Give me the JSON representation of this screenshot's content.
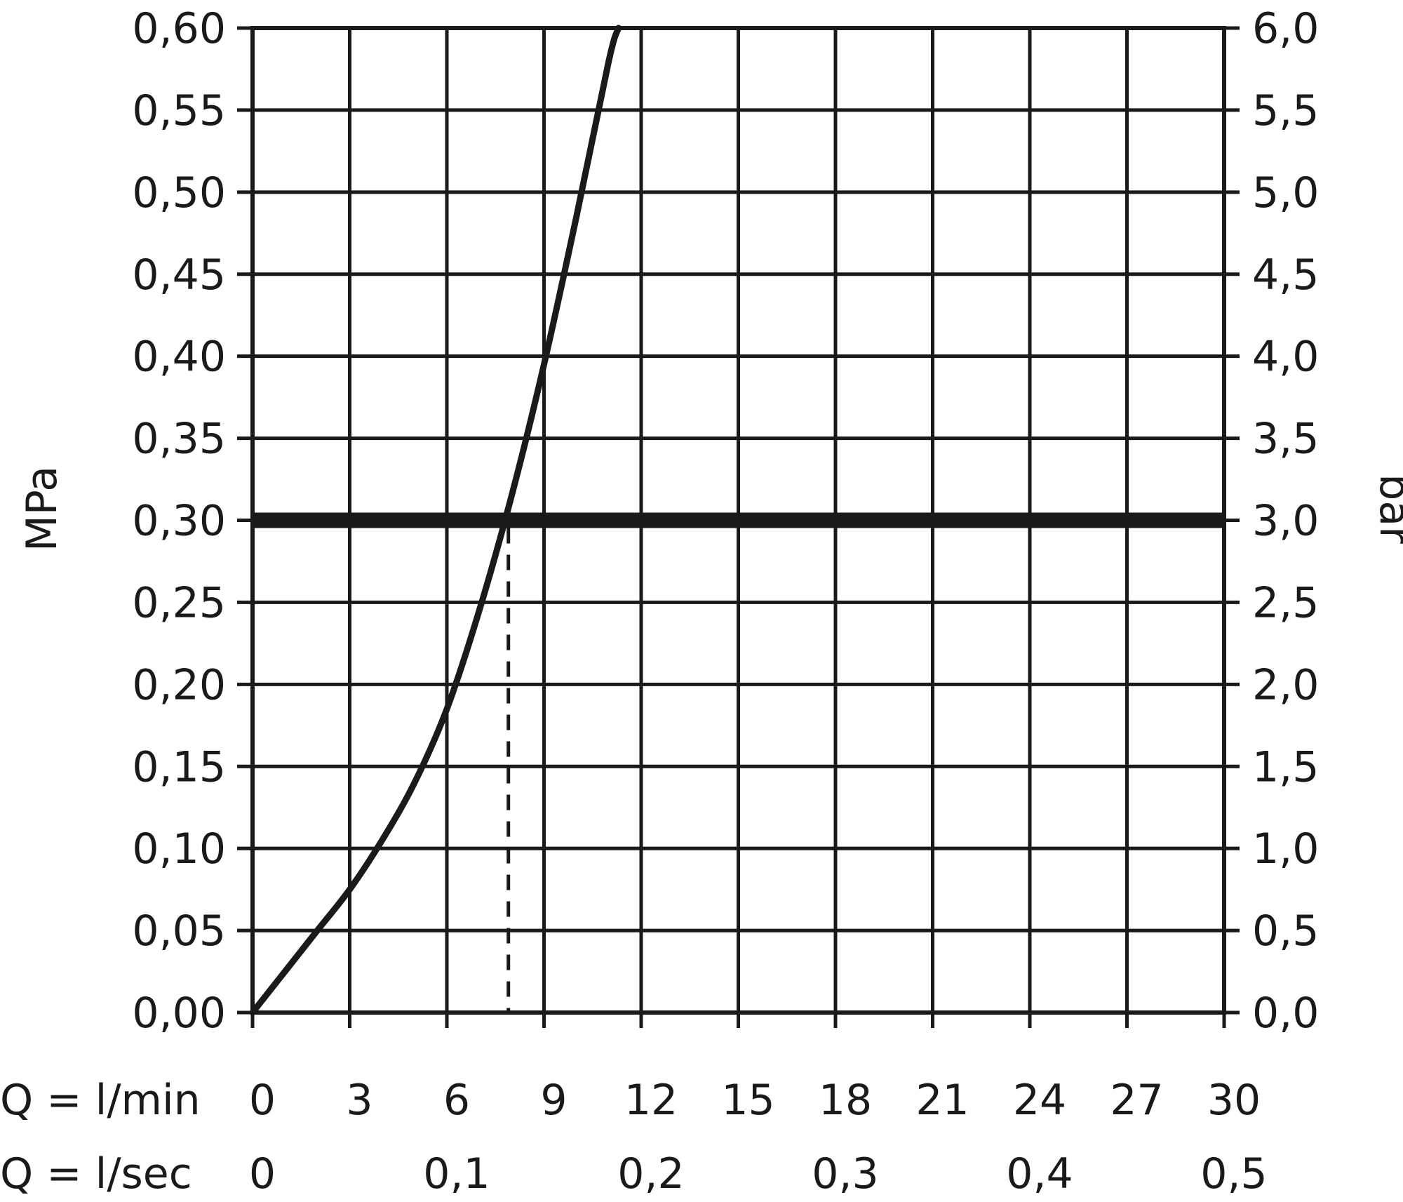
{
  "chart_data": {
    "type": "line",
    "title": "",
    "xlabel": "Q = l/min",
    "xlabel_secondary": "Q = l/sec",
    "ylabel": "MPa",
    "ylabel_secondary": "bar",
    "xlim": [
      0,
      30
    ],
    "ylim": [
      0,
      0.6
    ],
    "grid": true,
    "x_ticks": [
      {
        "value": 0,
        "label": "0"
      },
      {
        "value": 3,
        "label": "3"
      },
      {
        "value": 6,
        "label": "6"
      },
      {
        "value": 9,
        "label": "9"
      },
      {
        "value": 12,
        "label": "12"
      },
      {
        "value": 15,
        "label": "15"
      },
      {
        "value": 18,
        "label": "18"
      },
      {
        "value": 21,
        "label": "21"
      },
      {
        "value": 24,
        "label": "24"
      },
      {
        "value": 27,
        "label": "27"
      },
      {
        "value": 30,
        "label": "30"
      }
    ],
    "x_ticks_secondary": [
      {
        "value": 0,
        "label": "0"
      },
      {
        "value": 6,
        "label": "0,1"
      },
      {
        "value": 12,
        "label": "0,2"
      },
      {
        "value": 18,
        "label": "0,3"
      },
      {
        "value": 24,
        "label": "0,4"
      },
      {
        "value": 30,
        "label": "0,5"
      }
    ],
    "y_ticks": [
      {
        "value": 0.0,
        "label": "0,00"
      },
      {
        "value": 0.05,
        "label": "0,05"
      },
      {
        "value": 0.1,
        "label": "0,10"
      },
      {
        "value": 0.15,
        "label": "0,15"
      },
      {
        "value": 0.2,
        "label": "0,20"
      },
      {
        "value": 0.25,
        "label": "0,25"
      },
      {
        "value": 0.3,
        "label": "0,30"
      },
      {
        "value": 0.35,
        "label": "0,35"
      },
      {
        "value": 0.4,
        "label": "0,40"
      },
      {
        "value": 0.45,
        "label": "0,45"
      },
      {
        "value": 0.5,
        "label": "0,50"
      },
      {
        "value": 0.55,
        "label": "0,55"
      },
      {
        "value": 0.6,
        "label": "0,60"
      }
    ],
    "y_ticks_secondary": [
      {
        "value": 0.0,
        "label": "0,0"
      },
      {
        "value": 0.05,
        "label": "0,5"
      },
      {
        "value": 0.1,
        "label": "1,0"
      },
      {
        "value": 0.15,
        "label": "1,5"
      },
      {
        "value": 0.2,
        "label": "2,0"
      },
      {
        "value": 0.25,
        "label": "2,5"
      },
      {
        "value": 0.3,
        "label": "3,0"
      },
      {
        "value": 0.35,
        "label": "3,5"
      },
      {
        "value": 0.4,
        "label": "4,0"
      },
      {
        "value": 0.45,
        "label": "4,5"
      },
      {
        "value": 0.5,
        "label": "5,0"
      },
      {
        "value": 0.55,
        "label": "5,5"
      },
      {
        "value": 0.6,
        "label": "6,0"
      }
    ],
    "series": [
      {
        "x": [
          0,
          1,
          2,
          3,
          4,
          5,
          6,
          7,
          8,
          9,
          10,
          11,
          11.3
        ],
        "y": [
          0,
          0.025,
          0.05,
          0.075,
          0.105,
          0.14,
          0.185,
          0.245,
          0.315,
          0.395,
          0.485,
          0.58,
          0.6
        ]
      }
    ],
    "reference_line": {
      "y": 0.3
    },
    "marker_line": {
      "x": 7.9
    }
  }
}
